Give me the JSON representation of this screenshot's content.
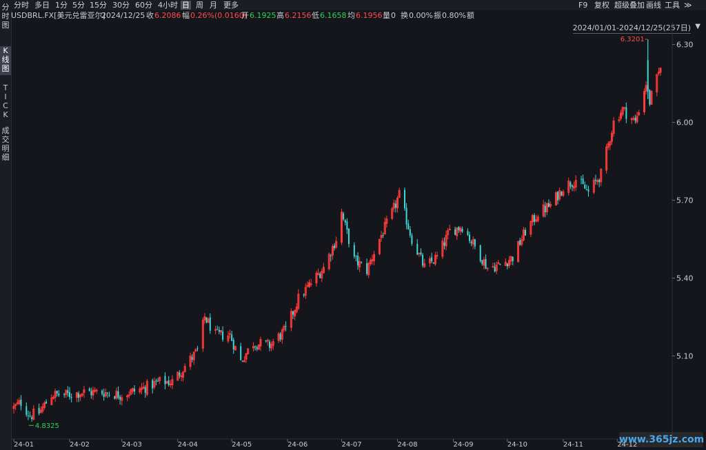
{
  "toolbar": {
    "periods": [
      {
        "label": "分时",
        "active": false
      },
      {
        "label": "多日",
        "active": false
      },
      {
        "label": "1分",
        "active": false
      },
      {
        "label": "5分",
        "active": false
      },
      {
        "label": "15分",
        "active": false
      },
      {
        "label": "30分",
        "active": false
      },
      {
        "label": "60分",
        "active": false
      },
      {
        "label": "4小时",
        "active": false
      },
      {
        "label": "日",
        "active": true
      },
      {
        "label": "周",
        "active": false
      },
      {
        "label": "月",
        "active": false
      },
      {
        "label": "更多",
        "active": false
      }
    ],
    "right": [
      "F9",
      "复权",
      "超级叠加",
      "画线",
      "工具",
      "≫"
    ]
  },
  "left_tabs": [
    {
      "label": "分时图",
      "active": false
    },
    {
      "label": "K线图",
      "active": true
    },
    {
      "label": "TICK",
      "active": false
    },
    {
      "label": "成交明细",
      "active": false
    }
  ],
  "info": {
    "symbol": "USDBRL.FX[美元兑雷亚尔]",
    "date": "2024/12/25",
    "close_label": "收",
    "close": "6.2086",
    "change_label": "幅",
    "change": "0.26%(0.0160)",
    "open_label": "开",
    "open": "6.1925",
    "high_label": "高",
    "high": "6.2156",
    "low_label": "低",
    "low": "6.1658",
    "avg_label": "均",
    "avg": "6.1956",
    "volume_label": "量",
    "volume": "0",
    "turnover_label": "换",
    "turnover": "0.00%",
    "amplitude_label": "振",
    "amplitude": "0.80%",
    "amount_label": "额",
    "amount": ""
  },
  "range": "2024/01/01-2024/12/25(257日)",
  "watermark": "www.365jz.com",
  "colors": {
    "up": "#ff3b3b",
    "down": "#3fd9d9",
    "bg": "#14161b",
    "max_label": "#ff4d4d",
    "min_label": "#2fd35a"
  },
  "chart_data": {
    "type": "candlestick",
    "title": "",
    "ylim": [
      4.78,
      6.36
    ],
    "y_ticks": [
      5.1,
      5.4,
      5.7,
      6.0,
      6.3
    ],
    "y_tick_labels": [
      "5.10",
      "5.40",
      "5.70",
      "6.00",
      "6.30"
    ],
    "x_tick_labels": [
      "24-01",
      "24-02",
      "24-03",
      "24-04",
      "24-05",
      "24-06",
      "24-07",
      "24-08",
      "24-09",
      "24-10",
      "24-11",
      "24-12"
    ],
    "max": {
      "value": 6.3201,
      "label": "6.3201"
    },
    "min": {
      "value": 4.8325,
      "label": "4.8325"
    },
    "close_path": [
      [
        "2024-01-01",
        4.9
      ],
      [
        "2024-01-05",
        4.92
      ],
      [
        "2024-01-10",
        4.87
      ],
      [
        "2024-01-15",
        4.88
      ],
      [
        "2024-01-22",
        4.95
      ],
      [
        "2024-01-31",
        4.95
      ],
      [
        "2024-02-09",
        4.96
      ],
      [
        "2024-02-19",
        4.96
      ],
      [
        "2024-02-29",
        4.95
      ],
      [
        "2024-03-11",
        4.97
      ],
      [
        "2024-03-22",
        5.0
      ],
      [
        "2024-03-29",
        5.0
      ],
      [
        "2024-04-05",
        5.06
      ],
      [
        "2024-04-12",
        5.12
      ],
      [
        "2024-04-16",
        5.25
      ],
      [
        "2024-04-22",
        5.18
      ],
      [
        "2024-04-30",
        5.18
      ],
      [
        "2024-05-06",
        5.08
      ],
      [
        "2024-05-13",
        5.15
      ],
      [
        "2024-05-22",
        5.14
      ],
      [
        "2024-05-31",
        5.2
      ],
      [
        "2024-06-07",
        5.32
      ],
      [
        "2024-06-14",
        5.38
      ],
      [
        "2024-06-21",
        5.44
      ],
      [
        "2024-06-28",
        5.55
      ],
      [
        "2024-07-01",
        5.65
      ],
      [
        "2024-07-08",
        5.47
      ],
      [
        "2024-07-15",
        5.43
      ],
      [
        "2024-07-22",
        5.55
      ],
      [
        "2024-07-29",
        5.65
      ],
      [
        "2024-08-02",
        5.72
      ],
      [
        "2024-08-09",
        5.55
      ],
      [
        "2024-08-16",
        5.44
      ],
      [
        "2024-08-23",
        5.48
      ],
      [
        "2024-08-30",
        5.58
      ],
      [
        "2024-09-06",
        5.6
      ],
      [
        "2024-09-13",
        5.52
      ],
      [
        "2024-09-20",
        5.44
      ],
      [
        "2024-09-27",
        5.45
      ],
      [
        "2024-10-04",
        5.48
      ],
      [
        "2024-10-11",
        5.58
      ],
      [
        "2024-10-18",
        5.65
      ],
      [
        "2024-10-25",
        5.68
      ],
      [
        "2024-11-01",
        5.75
      ],
      [
        "2024-11-08",
        5.78
      ],
      [
        "2024-11-15",
        5.73
      ],
      [
        "2024-11-22",
        5.8
      ],
      [
        "2024-11-29",
        6.0
      ],
      [
        "2024-12-04",
        6.05
      ],
      [
        "2024-12-11",
        6.0
      ],
      [
        "2024-12-17",
        6.15
      ],
      [
        "2024-12-19",
        6.08
      ],
      [
        "2024-12-25",
        6.2086
      ]
    ]
  }
}
